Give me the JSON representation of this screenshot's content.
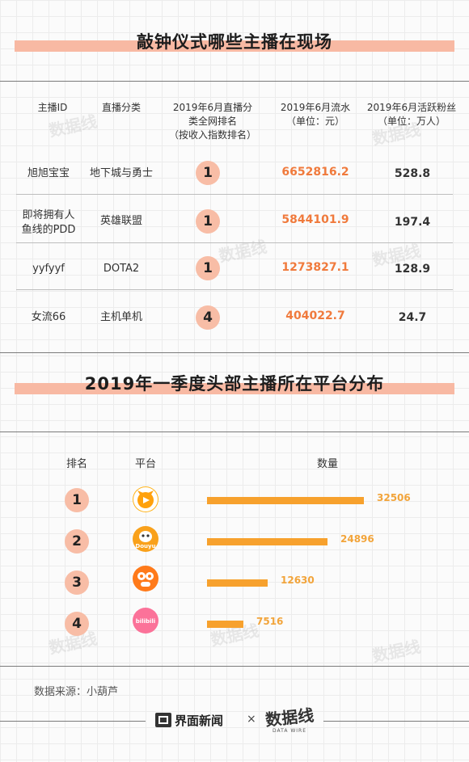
{
  "section1": {
    "title": "敲钟仪式哪些主播在现场",
    "headers": {
      "id": "主播ID",
      "category": "直播分类",
      "rank": [
        "2019年6月直播分",
        "类全网排名",
        "（按收入指数排名）"
      ],
      "revenue": [
        "2019年6月流水",
        "（单位：元）"
      ],
      "fans": [
        "2019年6月活跃粉丝",
        "（单位：万人）"
      ]
    },
    "rows": [
      {
        "id": [
          "旭旭宝宝"
        ],
        "category": "地下城与勇士",
        "rank": "1",
        "revenue": "6652816.2",
        "fans": "528.8"
      },
      {
        "id": [
          "即将拥有人",
          "鱼线的PDD"
        ],
        "category": "英雄联盟",
        "rank": "1",
        "revenue": "5844101.9",
        "fans": "197.4"
      },
      {
        "id": [
          "yyfyyf"
        ],
        "category": "DOTA2",
        "rank": "1",
        "revenue": "1273827.1",
        "fans": "128.9"
      },
      {
        "id": [
          "女流66"
        ],
        "category": "主机单机",
        "rank": "4",
        "revenue": "404022.7",
        "fans": "24.7"
      }
    ]
  },
  "section2": {
    "title": "2019年一季度头部主播所在平台分布",
    "headers": {
      "rank": "排名",
      "platform": "平台",
      "count": "数量"
    },
    "logo_text": {
      "douyu": "Douyu",
      "bilibili": "bilibili"
    }
  },
  "chart_data": {
    "type": "bar",
    "title": "2019年一季度头部主播所在平台分布",
    "orientation": "horizontal",
    "categories": [
      "huya",
      "douyu",
      "qie",
      "bilibili"
    ],
    "ranks": [
      "1",
      "2",
      "3",
      "4"
    ],
    "values": [
      32506,
      24896,
      12630,
      7516
    ],
    "value_labels": [
      "32506",
      "24896",
      "12630",
      "7516"
    ],
    "colors": {
      "bar": "#f7a12d",
      "label": "#f2a43a",
      "badge": "#f8bda6"
    }
  },
  "footer": {
    "source": "数据来源：小葫芦",
    "brand1": "界面新闻",
    "times": "×",
    "brand2": "数据线",
    "brand2_sub": "DATA WIRE"
  },
  "colors": {
    "accent": "#f8b9a3",
    "revenue": "#f07a3c"
  }
}
